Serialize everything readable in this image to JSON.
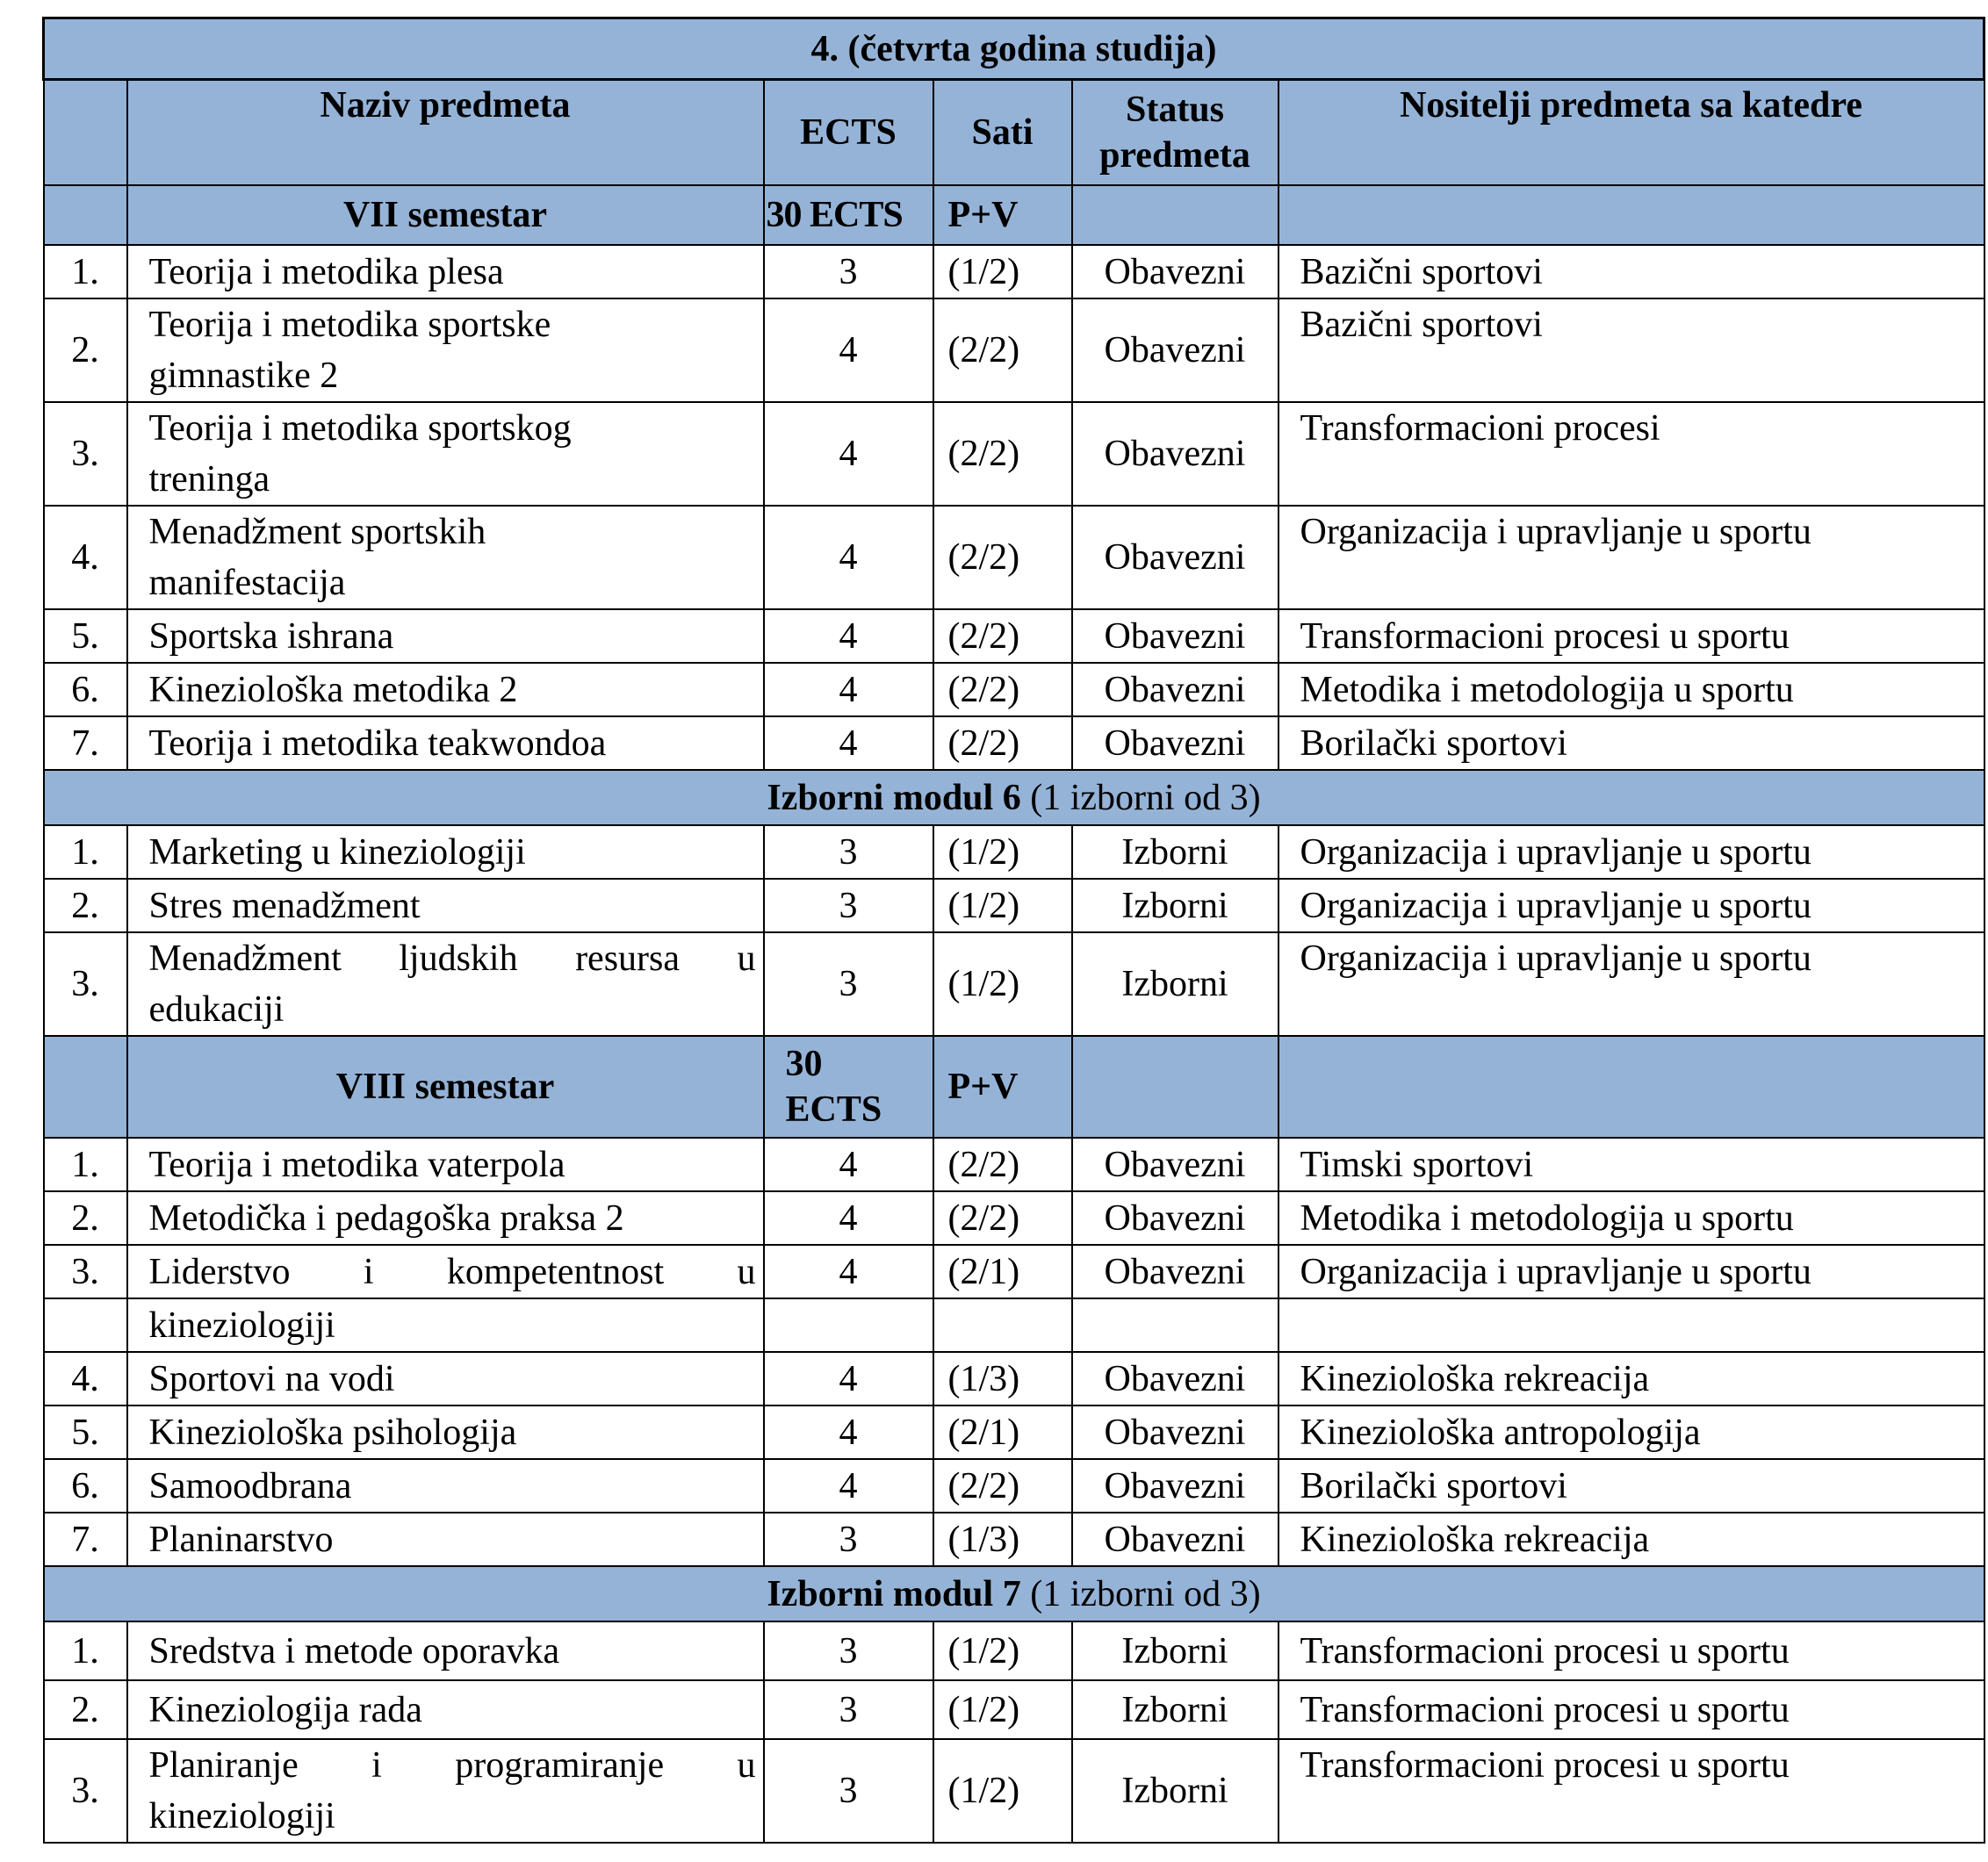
{
  "title": "4.   (četvrta godina studija)",
  "header": {
    "name": "Naziv predmeta",
    "ects": "ECTS",
    "sati": "Sati",
    "status_line1": "Status",
    "status_line2": "predmeta",
    "katedra": "Nositelji predmeta sa katedre"
  },
  "sections": [
    {
      "type": "sem",
      "label": "VII semestar",
      "ects": "30 ECTS",
      "sati": "P+V"
    },
    {
      "type": "row",
      "h": 1,
      "num": "1.",
      "lines": [
        "Teorija i metodika plesa"
      ],
      "ects": "3",
      "sati": "(1/2)",
      "status": "Obavezni",
      "katedra": "Bazični sportovi"
    },
    {
      "type": "row",
      "h": 2,
      "num": "2.",
      "lines": [
        "Teorija i metodika sportske",
        "gimnastike 2"
      ],
      "ects": "4",
      "sati": "(2/2)",
      "status": "Obavezni",
      "katedra": "Bazični sportovi"
    },
    {
      "type": "row",
      "h": 2,
      "num": "3.",
      "lines": [
        "Teorija i metodika sportskog",
        "treninga"
      ],
      "ects": "4",
      "sati": "(2/2)",
      "status": "Obavezni",
      "katedra": "Transformacioni procesi"
    },
    {
      "type": "row",
      "h": 2,
      "num": "4.",
      "lines": [
        "Menadžment sportskih",
        "manifestacija"
      ],
      "ects": "4",
      "sati": "(2/2)",
      "status": "Obavezni",
      "katedra": "Organizacija i upravljanje u sportu"
    },
    {
      "type": "row",
      "h": 1,
      "num": "5.",
      "lines": [
        "Sportska ishrana"
      ],
      "ects": "4",
      "sati": "(2/2)",
      "status": "Obavezni",
      "katedra": "Transformacioni procesi u sportu"
    },
    {
      "type": "row",
      "h": 1,
      "num": "6.",
      "lines": [
        "Kineziološka metodika 2"
      ],
      "ects": "4",
      "sati": "(2/2)",
      "status": "Obavezni",
      "katedra": "Metodika i metodologija u sportu"
    },
    {
      "type": "row",
      "h": 1,
      "num": "7.",
      "lines": [
        "Teorija i metodika teakwondoa"
      ],
      "ects": "4",
      "sati": "(2/2)",
      "status": "Obavezni",
      "katedra": "Borilački sportovi"
    },
    {
      "type": "mod",
      "label": "Izborni modul 6",
      "note": " (1 izborni od 3)"
    },
    {
      "type": "row",
      "h": 1,
      "num": "1.",
      "lines": [
        "Marketing u kineziologiji"
      ],
      "ects": "3",
      "sati": "(1/2)",
      "status": "Izborni",
      "katedra": "Organizacija i upravljanje u sportu"
    },
    {
      "type": "row",
      "h": 1,
      "num": "2.",
      "lines": [
        "Stres menadžment"
      ],
      "ects": "3",
      "sati": "(1/2)",
      "status": "Izborni",
      "katedra": "Organizacija i upravljanje u sportu"
    },
    {
      "type": "row",
      "h": 2,
      "justify": true,
      "num": "3.",
      "lines": [
        "Menadžment ljudskih resursa u",
        "edukaciji"
      ],
      "ects": "3",
      "sati": "(1/2)",
      "status": "Izborni",
      "katedra": "Organizacija i upravljanje u sportu"
    },
    {
      "type": "sem2",
      "label": "VIII semestar",
      "ects_line1": "30",
      "ects_line2": "ECTS",
      "sati": "P+V"
    },
    {
      "type": "row",
      "h": 1,
      "num": "1.",
      "lines": [
        "Teorija i metodika vaterpola"
      ],
      "ects": "4",
      "sati": "(2/2)",
      "status": "Obavezni",
      "katedra": "Timski sportovi"
    },
    {
      "type": "row",
      "h": 1,
      "num": "2.",
      "lines": [
        "Metodička i pedagoška praksa 2"
      ],
      "ects": "4",
      "sati": "(2/2)",
      "status": "Obavezni",
      "katedra": "Metodika i metodologija u sportu"
    },
    {
      "type": "row",
      "h": 1,
      "justify": true,
      "num": "3.",
      "lines": [
        "Liderstvo i kompetentnost u"
      ],
      "ects": "4",
      "sati": "(2/1)",
      "status": "Obavezni",
      "katedra": "Organizacija i upravljanje u sportu"
    },
    {
      "type": "row",
      "h": 1,
      "num": "",
      "lines": [
        "kineziologiji"
      ],
      "ects": "",
      "sati": "",
      "status": "",
      "katedra": ""
    },
    {
      "type": "row",
      "h": 1,
      "num": "4.",
      "lines": [
        "Sportovi na vodi"
      ],
      "ects": "4",
      "sati": "(1/3)",
      "status": "Obavezni",
      "katedra": "Kineziološka rekreacija"
    },
    {
      "type": "row",
      "h": 1,
      "num": "5.",
      "lines": [
        "Kineziološka psihologija"
      ],
      "ects": "4",
      "sati": "(2/1)",
      "status": "Obavezni",
      "katedra": "Kineziološka antropologija"
    },
    {
      "type": "row",
      "h": 1,
      "num": "6.",
      "lines": [
        "Samoodbrana"
      ],
      "ects": "4",
      "sati": "(2/2)",
      "status": "Obavezni",
      "katedra": "Borilački sportovi"
    },
    {
      "type": "row",
      "h": 1,
      "num": "7.",
      "lines": [
        "Planinarstvo"
      ],
      "ects": "3",
      "sati": "(1/3)",
      "status": "Obavezni",
      "katedra": "Kineziološka rekreacija"
    },
    {
      "type": "mod",
      "label": "Izborni modul 7",
      "note": " (1 izborni od 3)"
    },
    {
      "type": "row",
      "h": 1,
      "tall": true,
      "num": "1.",
      "lines": [
        "Sredstva i metode oporavka"
      ],
      "ects": "3",
      "sati": "(1/2)",
      "status": "Izborni",
      "katedra": "Transformacioni procesi u sportu"
    },
    {
      "type": "row",
      "h": 1,
      "tall": true,
      "num": "2.",
      "lines": [
        "Kineziologija rada"
      ],
      "ects": "3",
      "sati": "(1/2)",
      "status": "Izborni",
      "katedra": "Transformacioni procesi u sportu"
    },
    {
      "type": "row",
      "h": 2,
      "justify": true,
      "num": "3.",
      "lines": [
        "Planiranje i programiranje u",
        "kineziologiji"
      ],
      "ects": "3",
      "sati": "(1/2)",
      "status": "Izborni",
      "katedra": "Transformacioni procesi u sportu"
    }
  ],
  "colors": {
    "header_bg": "#95b3d7",
    "border": "#000000"
  }
}
